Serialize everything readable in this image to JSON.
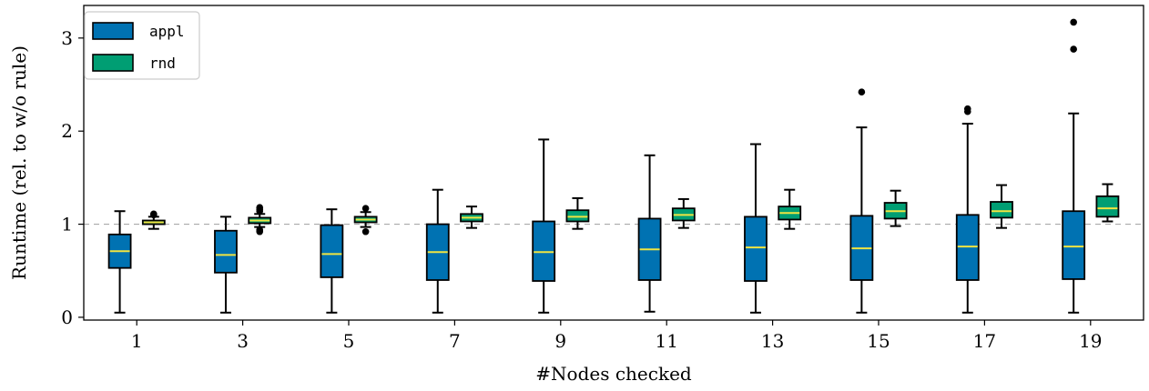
{
  "chart_data": {
    "type": "boxplot",
    "xlabel": "#Nodes checked",
    "ylabel": "Runtime (rel. to w/o rule)",
    "ylim": [
      -0.03,
      3.35
    ],
    "yticks": [
      0,
      1,
      2,
      3
    ],
    "categories": [
      "1",
      "3",
      "5",
      "7",
      "9",
      "11",
      "13",
      "15",
      "17",
      "19"
    ],
    "reference_line": {
      "y": 1.0,
      "style": "dashed",
      "color": "#aaaaaa"
    },
    "grid": false,
    "legend": {
      "position": "top-left"
    },
    "median_color": "#f0e442",
    "series": [
      {
        "name": "appl",
        "color": "#0072b2",
        "boxes": [
          {
            "whisker_low": 0.05,
            "q1": 0.53,
            "median": 0.71,
            "q3": 0.89,
            "whisker_high": 1.14,
            "outliers": []
          },
          {
            "whisker_low": 0.05,
            "q1": 0.48,
            "median": 0.67,
            "q3": 0.93,
            "whisker_high": 1.08,
            "outliers": []
          },
          {
            "whisker_low": 0.05,
            "q1": 0.43,
            "median": 0.68,
            "q3": 0.99,
            "whisker_high": 1.16,
            "outliers": []
          },
          {
            "whisker_low": 0.05,
            "q1": 0.4,
            "median": 0.7,
            "q3": 1.0,
            "whisker_high": 1.37,
            "outliers": []
          },
          {
            "whisker_low": 0.05,
            "q1": 0.39,
            "median": 0.7,
            "q3": 1.03,
            "whisker_high": 1.91,
            "outliers": []
          },
          {
            "whisker_low": 0.06,
            "q1": 0.4,
            "median": 0.73,
            "q3": 1.06,
            "whisker_high": 1.74,
            "outliers": []
          },
          {
            "whisker_low": 0.05,
            "q1": 0.39,
            "median": 0.75,
            "q3": 1.08,
            "whisker_high": 1.86,
            "outliers": []
          },
          {
            "whisker_low": 0.05,
            "q1": 0.4,
            "median": 0.74,
            "q3": 1.09,
            "whisker_high": 2.04,
            "outliers": [
              2.42
            ]
          },
          {
            "whisker_low": 0.05,
            "q1": 0.4,
            "median": 0.76,
            "q3": 1.1,
            "whisker_high": 2.08,
            "outliers": [
              2.21,
              2.24
            ]
          },
          {
            "whisker_low": 0.05,
            "q1": 0.41,
            "median": 0.76,
            "q3": 1.14,
            "whisker_high": 2.19,
            "outliers": [
              2.88,
              3.17
            ]
          }
        ]
      },
      {
        "name": "rnd",
        "color": "#009e73",
        "boxes": [
          {
            "whisker_low": 0.95,
            "q1": 1.0,
            "median": 1.02,
            "q3": 1.04,
            "whisker_high": 1.08,
            "outliers": [
              1.1,
              1.11
            ]
          },
          {
            "whisker_low": 0.97,
            "q1": 1.01,
            "median": 1.04,
            "q3": 1.07,
            "whisker_high": 1.11,
            "outliers": [
              0.92,
              0.94,
              1.14,
              1.16,
              1.18
            ]
          },
          {
            "whisker_low": 0.97,
            "q1": 1.02,
            "median": 1.05,
            "q3": 1.08,
            "whisker_high": 1.13,
            "outliers": [
              0.92,
              1.17
            ]
          },
          {
            "whisker_low": 0.96,
            "q1": 1.03,
            "median": 1.07,
            "q3": 1.11,
            "whisker_high": 1.19,
            "outliers": []
          },
          {
            "whisker_low": 0.95,
            "q1": 1.03,
            "median": 1.08,
            "q3": 1.15,
            "whisker_high": 1.28,
            "outliers": []
          },
          {
            "whisker_low": 0.96,
            "q1": 1.04,
            "median": 1.1,
            "q3": 1.17,
            "whisker_high": 1.27,
            "outliers": []
          },
          {
            "whisker_low": 0.95,
            "q1": 1.05,
            "median": 1.12,
            "q3": 1.19,
            "whisker_high": 1.37,
            "outliers": []
          },
          {
            "whisker_low": 0.98,
            "q1": 1.06,
            "median": 1.14,
            "q3": 1.23,
            "whisker_high": 1.36,
            "outliers": []
          },
          {
            "whisker_low": 0.96,
            "q1": 1.07,
            "median": 1.14,
            "q3": 1.24,
            "whisker_high": 1.42,
            "outliers": []
          },
          {
            "whisker_low": 1.03,
            "q1": 1.08,
            "median": 1.17,
            "q3": 1.3,
            "whisker_high": 1.43,
            "outliers": []
          }
        ]
      }
    ]
  }
}
